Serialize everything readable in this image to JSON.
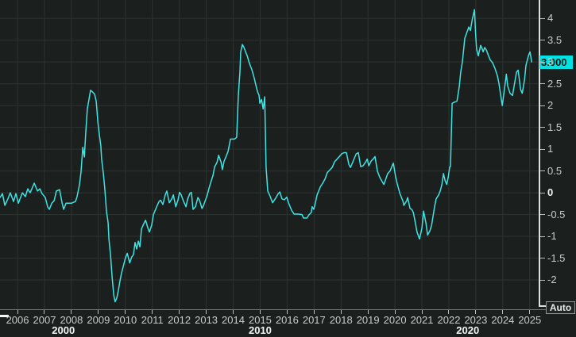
{
  "ui": {
    "auto_button_label": "Auto"
  },
  "chart_data": {
    "type": "line",
    "grid": true,
    "legend": false,
    "xlim": [
      2005.35,
      2025.36
    ],
    "ylim": [
      -2.69,
      4.42
    ],
    "x_tick_labels": [
      "2006",
      "2007",
      "2008",
      "2009",
      "2010",
      "2011",
      "2012",
      "2013",
      "2014",
      "2015",
      "2016",
      "2017",
      "2018",
      "2019",
      "2020",
      "2021",
      "2022",
      "2023",
      "2024",
      "2025"
    ],
    "decades": [
      {
        "label": "2000",
        "year": 2007.7
      },
      {
        "label": "2010",
        "year": 2015.0
      },
      {
        "label": "2020",
        "year": 2022.7
      }
    ],
    "y_ticks": [
      {
        "value": 4,
        "label": "4"
      },
      {
        "value": 3.5,
        "label": "3.5"
      },
      {
        "value": 3,
        "label": "3"
      },
      {
        "value": 2.5,
        "label": "2.5"
      },
      {
        "value": 2,
        "label": "2"
      },
      {
        "value": 1.5,
        "label": "1.5"
      },
      {
        "value": 1,
        "label": "1"
      },
      {
        "value": 0.5,
        "label": "0.5"
      },
      {
        "value": 0,
        "label": "0"
      },
      {
        "value": -0.5,
        "label": "-0.5"
      },
      {
        "value": -1,
        "label": "-1"
      },
      {
        "value": -1.5,
        "label": "-1.5"
      },
      {
        "value": -2,
        "label": "-2"
      }
    ],
    "last_value": "3.000",
    "colors": {
      "background": "#1b201e",
      "grid": "#2d3330",
      "line": "#3fe3e3",
      "badge": "#00e1e1",
      "tick_label": "#c7cdc9",
      "bold_label": "#f2f5f2"
    },
    "series": [
      {
        "name": "",
        "color": "#3fe3e3",
        "points": [
          [
            2005.35,
            -0.11
          ],
          [
            2005.44,
            -0.02
          ],
          [
            2005.53,
            -0.29
          ],
          [
            2005.65,
            -0.13
          ],
          [
            2005.73,
            0.0
          ],
          [
            2005.85,
            -0.2
          ],
          [
            2005.94,
            -0.02
          ],
          [
            2006.03,
            -0.24
          ],
          [
            2006.18,
            0.0
          ],
          [
            2006.29,
            -0.09
          ],
          [
            2006.38,
            0.09
          ],
          [
            2006.47,
            0.0
          ],
          [
            2006.62,
            0.22
          ],
          [
            2006.74,
            0.04
          ],
          [
            2006.83,
            0.09
          ],
          [
            2006.91,
            -0.02
          ],
          [
            2007.03,
            -0.11
          ],
          [
            2007.12,
            -0.33
          ],
          [
            2007.18,
            -0.38
          ],
          [
            2007.27,
            -0.24
          ],
          [
            2007.36,
            -0.18
          ],
          [
            2007.44,
            0.04
          ],
          [
            2007.56,
            0.07
          ],
          [
            2007.65,
            -0.22
          ],
          [
            2007.71,
            -0.38
          ],
          [
            2007.8,
            -0.24
          ],
          [
            2008.0,
            -0.24
          ],
          [
            2008.15,
            -0.2
          ],
          [
            2008.21,
            -0.09
          ],
          [
            2008.3,
            0.19
          ],
          [
            2008.36,
            0.5
          ],
          [
            2008.42,
            1.04
          ],
          [
            2008.48,
            0.82
          ],
          [
            2008.53,
            1.37
          ],
          [
            2008.59,
            1.92
          ],
          [
            2008.65,
            2.14
          ],
          [
            2008.71,
            2.35
          ],
          [
            2008.8,
            2.3
          ],
          [
            2008.86,
            2.26
          ],
          [
            2008.92,
            2.1
          ],
          [
            2008.98,
            1.62
          ],
          [
            2009.04,
            1.31
          ],
          [
            2009.09,
            1.08
          ],
          [
            2009.12,
            0.77
          ],
          [
            2009.18,
            0.46
          ],
          [
            2009.24,
            0.07
          ],
          [
            2009.3,
            -0.42
          ],
          [
            2009.36,
            -0.69
          ],
          [
            2009.39,
            -1.06
          ],
          [
            2009.45,
            -1.42
          ],
          [
            2009.51,
            -1.95
          ],
          [
            2009.57,
            -2.35
          ],
          [
            2009.62,
            -2.5
          ],
          [
            2009.68,
            -2.42
          ],
          [
            2009.74,
            -2.24
          ],
          [
            2009.8,
            -2.02
          ],
          [
            2009.86,
            -1.84
          ],
          [
            2009.95,
            -1.62
          ],
          [
            2010.01,
            -1.48
          ],
          [
            2010.07,
            -1.39
          ],
          [
            2010.16,
            -1.61
          ],
          [
            2010.24,
            -1.47
          ],
          [
            2010.3,
            -1.42
          ],
          [
            2010.36,
            -1.14
          ],
          [
            2010.42,
            -1.29
          ],
          [
            2010.48,
            -1.11
          ],
          [
            2010.54,
            -1.24
          ],
          [
            2010.6,
            -0.83
          ],
          [
            2010.69,
            -0.7
          ],
          [
            2010.75,
            -0.63
          ],
          [
            2010.83,
            -0.8
          ],
          [
            2010.89,
            -0.9
          ],
          [
            2010.98,
            -0.74
          ],
          [
            2011.04,
            -0.5
          ],
          [
            2011.16,
            -0.32
          ],
          [
            2011.25,
            -0.2
          ],
          [
            2011.31,
            -0.17
          ],
          [
            2011.39,
            -0.27
          ],
          [
            2011.48,
            -0.05
          ],
          [
            2011.54,
            0.04
          ],
          [
            2011.63,
            -0.23
          ],
          [
            2011.72,
            -0.14
          ],
          [
            2011.78,
            -0.05
          ],
          [
            2011.87,
            -0.32
          ],
          [
            2011.95,
            -0.17
          ],
          [
            2012.01,
            0.01
          ],
          [
            2012.07,
            -0.05
          ],
          [
            2012.16,
            -0.2
          ],
          [
            2012.25,
            -0.32
          ],
          [
            2012.31,
            -0.14
          ],
          [
            2012.4,
            -0.01
          ],
          [
            2012.45,
            0.01
          ],
          [
            2012.51,
            -0.38
          ],
          [
            2012.6,
            -0.32
          ],
          [
            2012.69,
            -0.11
          ],
          [
            2012.75,
            -0.17
          ],
          [
            2012.84,
            -0.36
          ],
          [
            2012.9,
            -0.29
          ],
          [
            2012.99,
            -0.14
          ],
          [
            2013.04,
            -0.05
          ],
          [
            2013.1,
            0.1
          ],
          [
            2013.16,
            0.22
          ],
          [
            2013.25,
            0.4
          ],
          [
            2013.31,
            0.59
          ],
          [
            2013.4,
            0.7
          ],
          [
            2013.46,
            0.86
          ],
          [
            2013.55,
            0.7
          ],
          [
            2013.6,
            0.53
          ],
          [
            2013.66,
            0.72
          ],
          [
            2013.75,
            0.85
          ],
          [
            2013.81,
            0.95
          ],
          [
            2013.9,
            1.23
          ],
          [
            2014.05,
            1.23
          ],
          [
            2014.13,
            1.27
          ],
          [
            2014.19,
            2.23
          ],
          [
            2014.25,
            2.78
          ],
          [
            2014.28,
            3.23
          ],
          [
            2014.34,
            3.4
          ],
          [
            2014.4,
            3.33
          ],
          [
            2014.46,
            3.23
          ],
          [
            2014.52,
            3.14
          ],
          [
            2014.58,
            3.01
          ],
          [
            2014.63,
            2.92
          ],
          [
            2014.69,
            2.83
          ],
          [
            2014.78,
            2.63
          ],
          [
            2014.84,
            2.47
          ],
          [
            2014.9,
            2.32
          ],
          [
            2014.96,
            2.23
          ],
          [
            2014.99,
            2.05
          ],
          [
            2015.05,
            2.14
          ],
          [
            2015.11,
            1.92
          ],
          [
            2015.17,
            2.2
          ],
          [
            2015.22,
            0.59
          ],
          [
            2015.28,
            0.04
          ],
          [
            2015.37,
            -0.08
          ],
          [
            2015.46,
            -0.23
          ],
          [
            2015.58,
            -0.12
          ],
          [
            2015.67,
            -0.02
          ],
          [
            2015.73,
            0.02
          ],
          [
            2015.81,
            -0.14
          ],
          [
            2015.9,
            -0.16
          ],
          [
            2015.99,
            -0.1
          ],
          [
            2016.05,
            -0.23
          ],
          [
            2016.17,
            -0.41
          ],
          [
            2016.26,
            -0.49
          ],
          [
            2016.4,
            -0.49
          ],
          [
            2016.55,
            -0.5
          ],
          [
            2016.61,
            -0.58
          ],
          [
            2016.73,
            -0.58
          ],
          [
            2016.82,
            -0.5
          ],
          [
            2016.9,
            -0.45
          ],
          [
            2016.93,
            -0.32
          ],
          [
            2016.99,
            -0.38
          ],
          [
            2017.05,
            -0.23
          ],
          [
            2017.11,
            -0.05
          ],
          [
            2017.17,
            0.04
          ],
          [
            2017.23,
            0.13
          ],
          [
            2017.32,
            0.22
          ],
          [
            2017.41,
            0.32
          ],
          [
            2017.49,
            0.46
          ],
          [
            2017.58,
            0.52
          ],
          [
            2017.67,
            0.58
          ],
          [
            2017.76,
            0.71
          ],
          [
            2017.85,
            0.77
          ],
          [
            2017.94,
            0.83
          ],
          [
            2018.02,
            0.89
          ],
          [
            2018.11,
            0.92
          ],
          [
            2018.2,
            0.92
          ],
          [
            2018.29,
            0.65
          ],
          [
            2018.35,
            0.58
          ],
          [
            2018.44,
            0.71
          ],
          [
            2018.56,
            0.89
          ],
          [
            2018.64,
            0.92
          ],
          [
            2018.73,
            0.6
          ],
          [
            2018.82,
            0.62
          ],
          [
            2018.91,
            0.7
          ],
          [
            2018.97,
            0.77
          ],
          [
            2019.03,
            0.62
          ],
          [
            2019.12,
            0.73
          ],
          [
            2019.2,
            0.78
          ],
          [
            2019.26,
            0.83
          ],
          [
            2019.35,
            0.49
          ],
          [
            2019.44,
            0.35
          ],
          [
            2019.53,
            0.25
          ],
          [
            2019.59,
            0.19
          ],
          [
            2019.68,
            0.35
          ],
          [
            2019.73,
            0.44
          ],
          [
            2019.82,
            0.5
          ],
          [
            2019.88,
            0.59
          ],
          [
            2019.94,
            0.68
          ],
          [
            2020.03,
            0.35
          ],
          [
            2020.09,
            0.19
          ],
          [
            2020.18,
            -0.01
          ],
          [
            2020.3,
            -0.2
          ],
          [
            2020.33,
            -0.29
          ],
          [
            2020.44,
            -0.18
          ],
          [
            2020.47,
            -0.11
          ],
          [
            2020.56,
            -0.36
          ],
          [
            2020.62,
            -0.38
          ],
          [
            2020.68,
            -0.45
          ],
          [
            2020.74,
            -0.63
          ],
          [
            2020.82,
            -0.9
          ],
          [
            2020.91,
            -1.06
          ],
          [
            2021.0,
            -0.81
          ],
          [
            2021.06,
            -0.42
          ],
          [
            2021.15,
            -0.69
          ],
          [
            2021.21,
            -0.97
          ],
          [
            2021.3,
            -0.87
          ],
          [
            2021.36,
            -0.74
          ],
          [
            2021.47,
            -0.32
          ],
          [
            2021.53,
            -0.14
          ],
          [
            2021.62,
            -0.05
          ],
          [
            2021.68,
            0.04
          ],
          [
            2021.74,
            0.19
          ],
          [
            2021.8,
            0.44
          ],
          [
            2021.86,
            0.28
          ],
          [
            2021.92,
            0.19
          ],
          [
            2021.98,
            0.37
          ],
          [
            2022.03,
            0.59
          ],
          [
            2022.06,
            0.6
          ],
          [
            2022.12,
            2.05
          ],
          [
            2022.21,
            2.08
          ],
          [
            2022.3,
            2.1
          ],
          [
            2022.39,
            2.45
          ],
          [
            2022.44,
            2.77
          ],
          [
            2022.5,
            3.0
          ],
          [
            2022.59,
            3.54
          ],
          [
            2022.68,
            3.7
          ],
          [
            2022.74,
            3.8
          ],
          [
            2022.8,
            3.72
          ],
          [
            2022.86,
            3.95
          ],
          [
            2022.95,
            4.2
          ],
          [
            2023.0,
            3.56
          ],
          [
            2023.03,
            3.29
          ],
          [
            2023.09,
            3.14
          ],
          [
            2023.18,
            3.38
          ],
          [
            2023.24,
            3.29
          ],
          [
            2023.27,
            3.23
          ],
          [
            2023.33,
            3.33
          ],
          [
            2023.39,
            3.27
          ],
          [
            2023.47,
            3.14
          ],
          [
            2023.53,
            3.05
          ],
          [
            2023.62,
            2.98
          ],
          [
            2023.71,
            2.85
          ],
          [
            2023.8,
            2.68
          ],
          [
            2023.86,
            2.5
          ],
          [
            2023.92,
            2.25
          ],
          [
            2023.98,
            2.0
          ],
          [
            2024.07,
            2.41
          ],
          [
            2024.13,
            2.72
          ],
          [
            2024.18,
            2.45
          ],
          [
            2024.27,
            2.28
          ],
          [
            2024.36,
            2.23
          ],
          [
            2024.45,
            2.55
          ],
          [
            2024.51,
            2.77
          ],
          [
            2024.57,
            2.81
          ],
          [
            2024.66,
            2.37
          ],
          [
            2024.72,
            2.28
          ],
          [
            2024.81,
            2.6
          ],
          [
            2024.86,
            2.92
          ],
          [
            2024.95,
            3.14
          ],
          [
            2025.01,
            3.23
          ],
          [
            2025.07,
            3.0
          ]
        ]
      }
    ]
  }
}
